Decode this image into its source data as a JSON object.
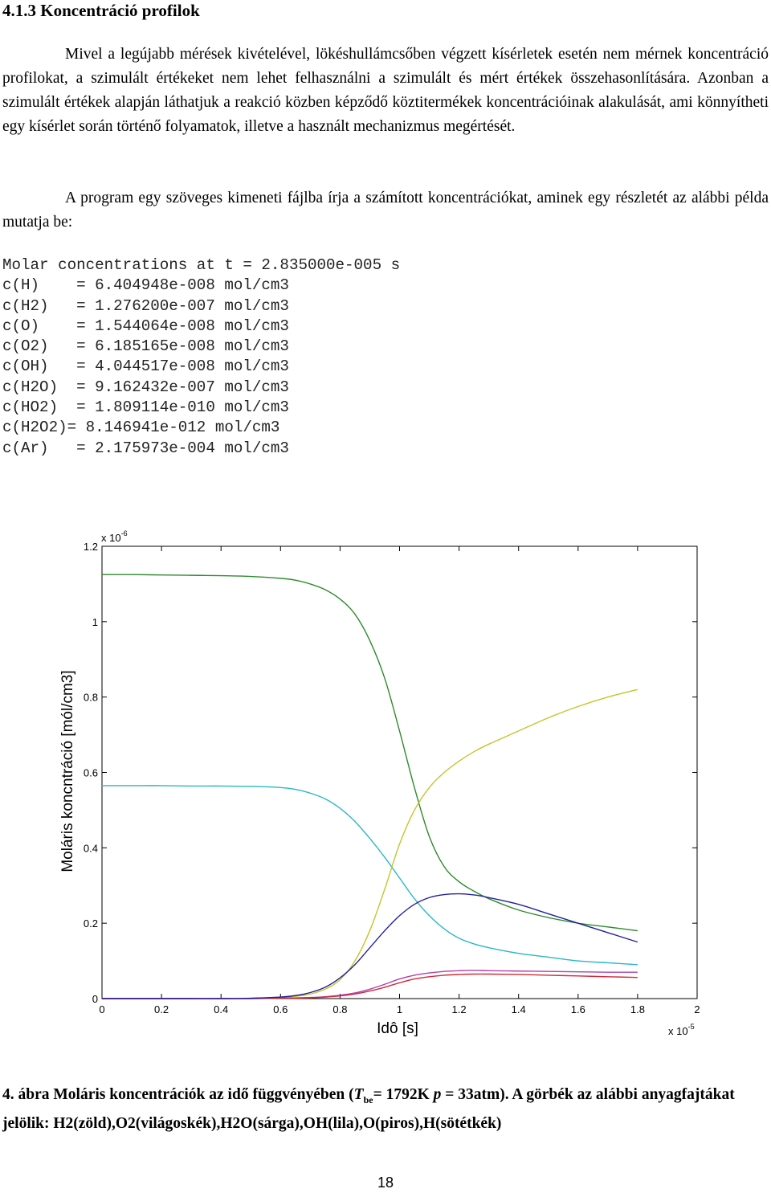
{
  "heading": "4.1.3 Koncentráció profilok",
  "paragraphs": [
    "Mivel a legújabb mérések kivételével, lökéshullámcsőben végzett kísérletek esetén nem mérnek koncentráció profilokat, a szimulált értékeket nem lehet felhasználni a szimulált és mért értékek összehasonlítására. Azonban a szimulált értékek alapján láthatjuk a reakció közben képződő köztitermékek koncentrációinak alakulását, ami könnyítheti egy kísérlet során történő folyamatok, illetve a használt mechanizmus megértését.",
    "A program egy szöveges kimeneti fájlba írja a számított koncentrációkat, aminek egy részletét az alábbi példa mutatja be:"
  ],
  "code_lines": [
    "Molar concentrations at t = 2.835000e-005 s",
    "c(H)    = 6.404948e-008 mol/cm3",
    "c(H2)   = 1.276200e-007 mol/cm3",
    "c(O)    = 1.544064e-008 mol/cm3",
    "c(O2)   = 6.185165e-008 mol/cm3",
    "c(OH)   = 4.044517e-008 mol/cm3",
    "c(H2O)  = 9.162432e-007 mol/cm3",
    "c(HO2)  = 1.809114e-010 mol/cm3",
    "c(H2O2)= 8.146941e-012 mol/cm3",
    "c(Ar)   = 2.175973e-004 mol/cm3"
  ],
  "chart_data": {
    "type": "line",
    "xlabel": "Idô [s]",
    "ylabel": "Moláris koncntráció [mól/cm3]",
    "x_multiplier": "x 10",
    "x_multiplier_exp": "-5",
    "y_multiplier": "x 10",
    "y_multiplier_exp": "-6",
    "xlim": [
      0,
      2
    ],
    "ylim": [
      0,
      1.2
    ],
    "x_ticks": [
      "0",
      "0.2",
      "0.4",
      "0.6",
      "0.8",
      "1",
      "1.2",
      "1.4",
      "1.6",
      "1.8",
      "2"
    ],
    "y_ticks": [
      "0",
      "0.2",
      "0.4",
      "0.6",
      "0.8",
      "1",
      "1.2"
    ],
    "x": [
      0,
      0.1,
      0.2,
      0.3,
      0.4,
      0.5,
      0.6,
      0.65,
      0.7,
      0.75,
      0.8,
      0.85,
      0.9,
      0.95,
      1.0,
      1.05,
      1.1,
      1.15,
      1.2,
      1.25,
      1.3,
      1.4,
      1.5,
      1.6,
      1.7,
      1.8
    ],
    "series": [
      {
        "color": "#2e8b2e",
        "values": [
          1.125,
          1.125,
          1.124,
          1.123,
          1.122,
          1.12,
          1.115,
          1.11,
          1.1,
          1.085,
          1.06,
          1.02,
          0.95,
          0.85,
          0.71,
          0.56,
          0.43,
          0.35,
          0.31,
          0.285,
          0.265,
          0.235,
          0.215,
          0.2,
          0.19,
          0.18
        ]
      },
      {
        "color": "#2ab7c4",
        "values": [
          0.565,
          0.565,
          0.565,
          0.564,
          0.564,
          0.563,
          0.56,
          0.555,
          0.545,
          0.53,
          0.505,
          0.47,
          0.425,
          0.375,
          0.32,
          0.265,
          0.22,
          0.185,
          0.16,
          0.145,
          0.135,
          0.12,
          0.11,
          0.1,
          0.095,
          0.09
        ]
      },
      {
        "color": "#c8c32a",
        "values": [
          0,
          0,
          0,
          0,
          0,
          0.001,
          0.003,
          0.006,
          0.012,
          0.025,
          0.05,
          0.1,
          0.18,
          0.29,
          0.41,
          0.5,
          0.56,
          0.6,
          0.63,
          0.655,
          0.675,
          0.71,
          0.745,
          0.775,
          0.8,
          0.82
        ]
      },
      {
        "color": "#b040b0",
        "values": [
          0,
          0,
          0,
          0,
          0,
          0,
          0.001,
          0.002,
          0.003,
          0.005,
          0.009,
          0.015,
          0.025,
          0.038,
          0.052,
          0.062,
          0.068,
          0.072,
          0.074,
          0.075,
          0.074,
          0.073,
          0.072,
          0.071,
          0.07,
          0.07
        ]
      },
      {
        "color": "#d02a3a",
        "values": [
          0,
          0,
          0,
          0,
          0,
          0,
          0.001,
          0.001,
          0.002,
          0.004,
          0.007,
          0.012,
          0.02,
          0.03,
          0.042,
          0.052,
          0.058,
          0.062,
          0.064,
          0.065,
          0.065,
          0.064,
          0.062,
          0.06,
          0.058,
          0.056
        ]
      },
      {
        "color": "#22229a",
        "values": [
          0,
          0,
          0,
          0,
          0,
          0.001,
          0.004,
          0.008,
          0.016,
          0.03,
          0.055,
          0.09,
          0.135,
          0.18,
          0.22,
          0.25,
          0.268,
          0.276,
          0.278,
          0.275,
          0.268,
          0.25,
          0.225,
          0.2,
          0.175,
          0.15
        ]
      }
    ]
  },
  "caption": {
    "prefix": "4. ábra Moláris koncentrációk az idő függvényében (",
    "t_symbol": "T",
    "t_sub": "be",
    "middle": "= 1792K ",
    "p_symbol": "p",
    "suffix": " = 33atm). A görbék az alábbi anyagfajtákat jelölik: H2(zöld),O2(világoskék),H2O(sárga),OH(lila),O(piros),H(sötétkék)"
  },
  "page_number": "18"
}
